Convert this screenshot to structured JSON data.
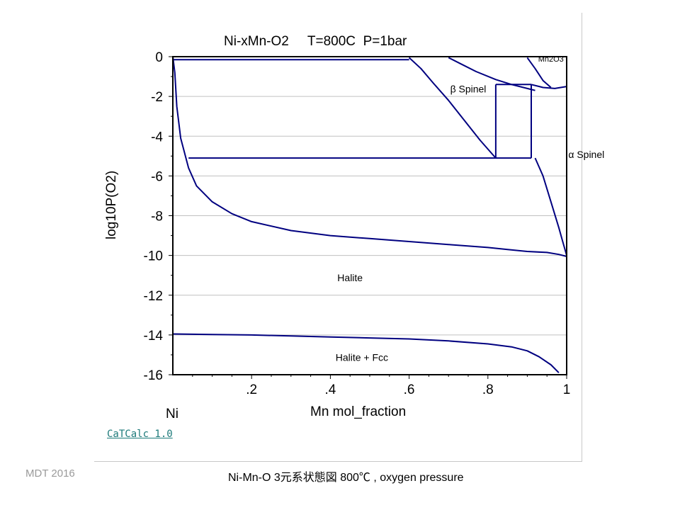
{
  "chart_data": {
    "type": "line",
    "title": "Ni-xMn-O2     T=800C  P=1bar",
    "xlabel": "Mn mol_fraction",
    "ylabel": "log10P(O2)",
    "xlim": [
      0,
      1
    ],
    "ylim": [
      -16,
      0
    ],
    "x_ticks": [
      {
        "value": 0.2,
        "label": ".2"
      },
      {
        "value": 0.4,
        "label": ".4"
      },
      {
        "value": 0.6,
        "label": ".6"
      },
      {
        "value": 0.8,
        "label": ".8"
      },
      {
        "value": 1.0,
        "label": "1"
      }
    ],
    "y_ticks": [
      {
        "value": 0,
        "label": "0"
      },
      {
        "value": -2,
        "label": "-2"
      },
      {
        "value": -4,
        "label": "-4"
      },
      {
        "value": -6,
        "label": "-6"
      },
      {
        "value": -8,
        "label": "-8"
      },
      {
        "value": -10,
        "label": "-10"
      },
      {
        "value": -12,
        "label": "-12"
      },
      {
        "value": -14,
        "label": "-14"
      },
      {
        "value": -16,
        "label": "-16"
      }
    ],
    "x_endpoint_label": "Ni",
    "grid": "horizontal",
    "series": [
      {
        "x": [
          0.0,
          0.6
        ],
        "y": [
          -0.15,
          -0.15
        ]
      },
      {
        "x": [
          0.04,
          0.82,
          0.91
        ],
        "y": [
          -5.1,
          -5.1,
          -5.1
        ]
      },
      {
        "x": [
          0.82,
          0.91
        ],
        "y": [
          -1.4,
          -1.4
        ]
      },
      {
        "x": [
          0.82,
          0.82
        ],
        "y": [
          -1.4,
          -5.1
        ]
      },
      {
        "x": [
          0.91,
          0.91
        ],
        "y": [
          -1.4,
          -5.1
        ]
      },
      {
        "x": [
          0.6,
          0.63,
          0.66,
          0.7,
          0.74,
          0.78,
          0.82
        ],
        "y": [
          -0.05,
          -0.6,
          -1.3,
          -2.2,
          -3.2,
          -4.2,
          -5.1
        ]
      },
      {
        "x": [
          0.7,
          0.73,
          0.77,
          0.82,
          0.86,
          0.9,
          0.92
        ],
        "y": [
          -0.05,
          -0.35,
          -0.75,
          -1.15,
          -1.4,
          -1.6,
          -1.7
        ]
      },
      {
        "x": [
          0.9,
          0.92,
          0.94,
          0.96
        ],
        "y": [
          -0.05,
          -0.6,
          -1.2,
          -1.55
        ]
      },
      {
        "x": [
          0.91,
          0.94,
          0.97,
          1.0
        ],
        "y": [
          -1.4,
          -1.55,
          -1.6,
          -1.5
        ]
      },
      {
        "x": [
          0.92,
          0.94,
          0.96,
          0.98,
          0.99,
          1.0
        ],
        "y": [
          -5.1,
          -6.0,
          -7.3,
          -8.6,
          -9.3,
          -10.0
        ]
      },
      {
        "x": [
          0.0,
          0.005,
          0.01,
          0.02,
          0.04,
          0.06,
          0.1,
          0.15,
          0.2,
          0.3,
          0.4,
          0.5,
          0.6,
          0.7,
          0.8,
          0.85,
          0.9,
          0.95,
          0.98,
          1.0
        ],
        "y": [
          0.0,
          -0.8,
          -2.5,
          -4.1,
          -5.6,
          -6.5,
          -7.3,
          -7.9,
          -8.3,
          -8.75,
          -9.0,
          -9.15,
          -9.3,
          -9.45,
          -9.6,
          -9.7,
          -9.8,
          -9.85,
          -9.95,
          -10.05
        ]
      },
      {
        "x": [
          0.0,
          0.1,
          0.2,
          0.3,
          0.4,
          0.5,
          0.6,
          0.7,
          0.8,
          0.86,
          0.9,
          0.93,
          0.96,
          0.98
        ],
        "y": [
          -13.95,
          -13.98,
          -14.0,
          -14.05,
          -14.1,
          -14.15,
          -14.2,
          -14.3,
          -14.45,
          -14.6,
          -14.8,
          -15.1,
          -15.5,
          -15.9
        ]
      }
    ],
    "regions": [
      {
        "label": "Halite",
        "x": 0.45,
        "y": -11.3
      },
      {
        "label": "Halite + Fcc",
        "x": 0.48,
        "y": -15.3
      },
      {
        "label": "β Spinel",
        "x": 0.75,
        "y": -1.8
      },
      {
        "label": "α Spinel",
        "x": 1.05,
        "y": -5.1
      },
      {
        "label": "Mn2O3",
        "x": 0.96,
        "y": -0.25
      }
    ]
  },
  "footer": {
    "software": "CaTCalc 1.0",
    "left": "MDT   2016",
    "caption": "Ni-Mn-O 3元系状態図  800℃ , oxygen pressure"
  },
  "colors": {
    "curve": "#000080",
    "grid": "#c0c0c0",
    "axis": "#000000",
    "link": "#1d7a7a"
  }
}
